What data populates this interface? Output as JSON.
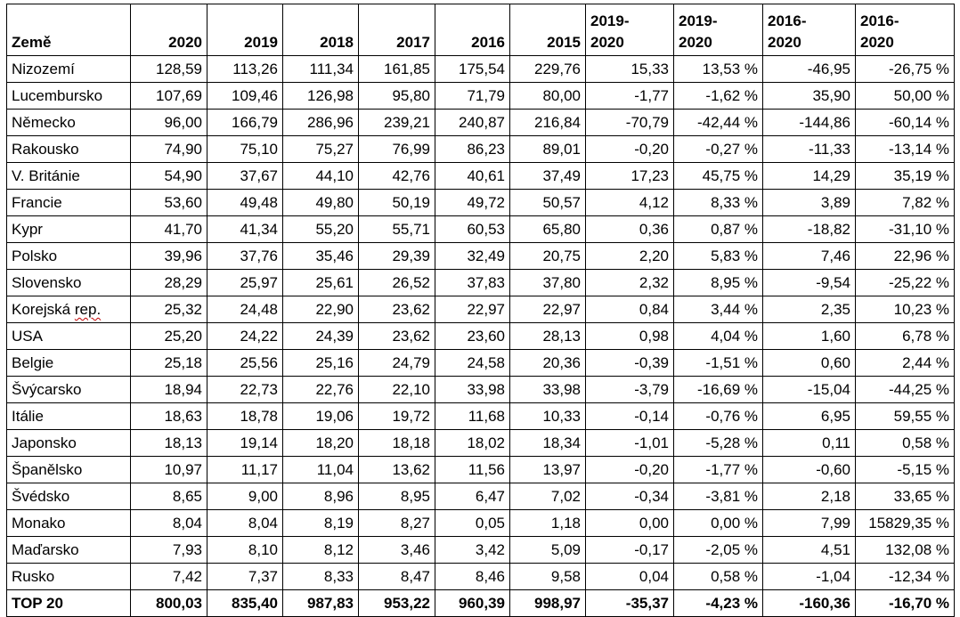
{
  "table": {
    "headers": [
      [
        "Země"
      ],
      [
        "2020"
      ],
      [
        "2019"
      ],
      [
        "2018"
      ],
      [
        "2017"
      ],
      [
        "2016"
      ],
      [
        "2015"
      ],
      [
        "2019-",
        "2020"
      ],
      [
        "2019-",
        "2020"
      ],
      [
        "2016-",
        "2020"
      ],
      [
        "2016-",
        "2020"
      ]
    ],
    "rows": [
      [
        "Nizozemí",
        "128,59",
        "113,26",
        "111,34",
        "161,85",
        "175,54",
        "229,76",
        "15,33",
        "13,53 %",
        "-46,95",
        "-26,75 %"
      ],
      [
        "Lucembursko",
        "107,69",
        "109,46",
        "126,98",
        "95,80",
        "71,79",
        "80,00",
        "-1,77",
        "-1,62 %",
        "35,90",
        "50,00 %"
      ],
      [
        "Německo",
        "96,00",
        "166,79",
        "286,96",
        "239,21",
        "240,87",
        "216,84",
        "-70,79",
        "-42,44 %",
        "-144,86",
        "-60,14 %"
      ],
      [
        "Rakousko",
        "74,90",
        "75,10",
        "75,27",
        "76,99",
        "86,23",
        "89,01",
        "-0,20",
        "-0,27 %",
        "-11,33",
        "-13,14 %"
      ],
      [
        "V. Británie",
        "54,90",
        "37,67",
        "44,10",
        "42,76",
        "40,61",
        "37,49",
        "17,23",
        "45,75 %",
        "14,29",
        "35,19 %"
      ],
      [
        "Francie",
        "53,60",
        "49,48",
        "49,80",
        "50,19",
        "49,72",
        "50,57",
        "4,12",
        "8,33 %",
        "3,89",
        "7,82 %"
      ],
      [
        "Kypr",
        "41,70",
        "41,34",
        "55,20",
        "55,71",
        "60,53",
        "65,80",
        "0,36",
        "0,87 %",
        "-18,82",
        "-31,10 %"
      ],
      [
        "Polsko",
        "39,96",
        "37,76",
        "35,46",
        "29,39",
        "32,49",
        "20,75",
        "2,20",
        "5,83 %",
        "7,46",
        "22,96 %"
      ],
      [
        "Slovensko",
        "28,29",
        "25,97",
        "25,61",
        "26,52",
        "37,83",
        "37,80",
        "2,32",
        "8,95 %",
        "-9,54",
        "-25,22 %"
      ],
      [
        "Korejská rep.",
        "25,32",
        "24,48",
        "22,90",
        "23,62",
        "22,97",
        "22,97",
        "0,84",
        "3,44 %",
        "2,35",
        "10,23 %"
      ],
      [
        "USA",
        "25,20",
        "24,22",
        "24,39",
        "23,62",
        "23,60",
        "28,13",
        "0,98",
        "4,04 %",
        "1,60",
        "6,78 %"
      ],
      [
        "Belgie",
        "25,18",
        "25,56",
        "25,16",
        "24,79",
        "24,58",
        "20,36",
        "-0,39",
        "-1,51 %",
        "0,60",
        "2,44 %"
      ],
      [
        "Švýcarsko",
        "18,94",
        "22,73",
        "22,76",
        "22,10",
        "33,98",
        "33,98",
        "-3,79",
        "-16,69 %",
        "-15,04",
        "-44,25 %"
      ],
      [
        "Itálie",
        "18,63",
        "18,78",
        "19,06",
        "19,72",
        "11,68",
        "10,33",
        "-0,14",
        "-0,76 %",
        "6,95",
        "59,55 %"
      ],
      [
        "Japonsko",
        "18,13",
        "19,14",
        "18,20",
        "18,18",
        "18,02",
        "18,34",
        "-1,01",
        "-5,28 %",
        "0,11",
        "0,58 %"
      ],
      [
        "Španělsko",
        "10,97",
        "11,17",
        "11,04",
        "13,62",
        "11,56",
        "13,97",
        "-0,20",
        "-1,77 %",
        "-0,60",
        "-5,15 %"
      ],
      [
        "Švédsko",
        "8,65",
        "9,00",
        "8,96",
        "8,95",
        "6,47",
        "7,02",
        "-0,34",
        "-3,81 %",
        "2,18",
        "33,65 %"
      ],
      [
        "Monako",
        "8,04",
        "8,04",
        "8,19",
        "8,27",
        "0,05",
        "1,18",
        "0,00",
        "0,00 %",
        "7,99",
        "15829,35 %"
      ],
      [
        "Maďarsko",
        "7,93",
        "8,10",
        "8,12",
        "3,46",
        "3,42",
        "5,09",
        "-0,17",
        "-2,05 %",
        "4,51",
        "132,08 %"
      ],
      [
        "Rusko",
        "7,42",
        "7,37",
        "8,33",
        "8,47",
        "8,46",
        "9,58",
        "0,04",
        "0,58 %",
        "-1,04",
        "-12,34 %"
      ]
    ],
    "total": [
      "TOP 20",
      "800,03",
      "835,40",
      "987,83",
      "953,22",
      "960,39",
      "998,97",
      "-35,37",
      "-4,23 %",
      "-160,36",
      "-16,70 %"
    ],
    "spellcheck_flagged_word": "rep."
  }
}
